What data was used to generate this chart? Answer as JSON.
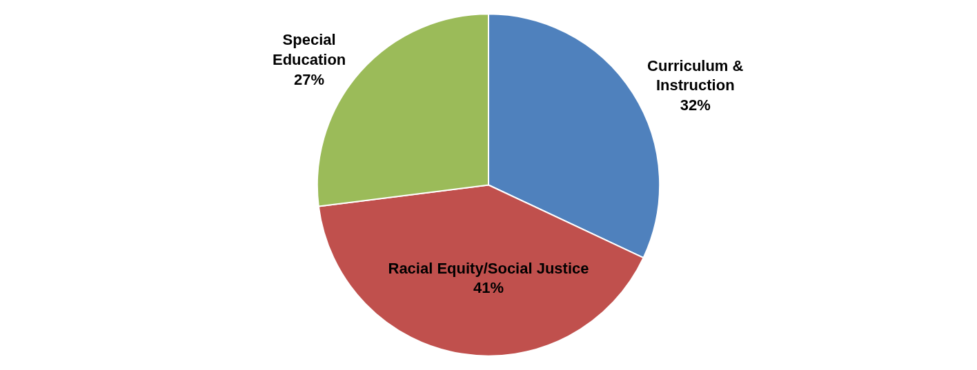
{
  "chart_data": {
    "type": "pie",
    "categories": [
      "Curriculum & Instruction",
      "Racial Equity/Social Justice",
      "Special Education"
    ],
    "values": [
      32,
      41,
      27
    ],
    "value_labels": [
      "32%",
      "41%",
      "27%"
    ],
    "colors": [
      "#4f81bd",
      "#c0504d",
      "#9bbb59"
    ],
    "legend": false
  }
}
